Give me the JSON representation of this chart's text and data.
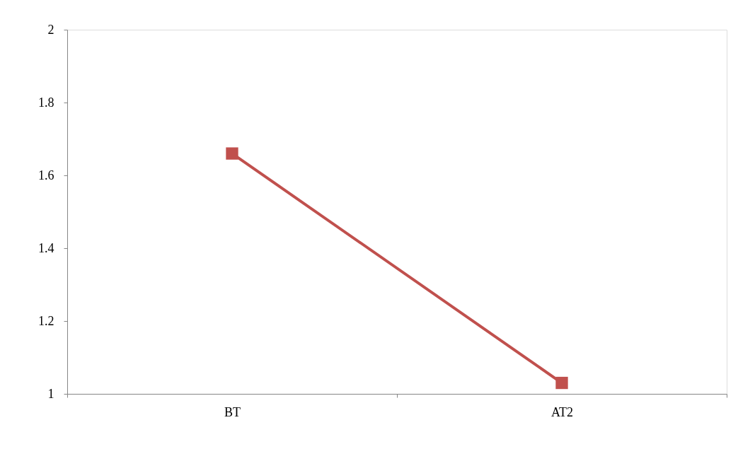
{
  "chart_data": {
    "type": "line",
    "categories": [
      "BT",
      "AT2"
    ],
    "series": [
      {
        "color": "#c0504d",
        "values": [
          1.66,
          1.03
        ]
      }
    ],
    "ylim": [
      1,
      2
    ],
    "yticks": [
      1,
      1.2,
      1.4,
      1.6,
      1.8,
      2
    ],
    "grid": false,
    "marker": "square",
    "line_style": "solid"
  }
}
